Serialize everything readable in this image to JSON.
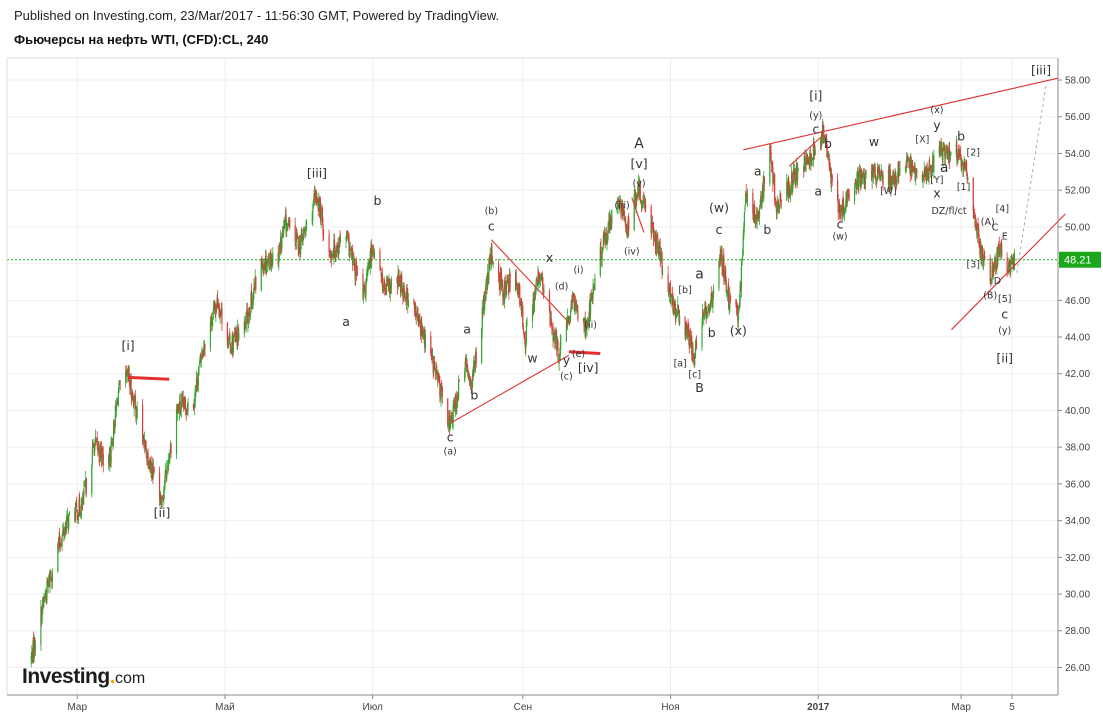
{
  "header": {
    "published_line": "Published on Investing.com, 23/Mar/2017 - 11:56:30 GMT, Powered by TradingView.",
    "title": "Фьючерсы на нефть WTI, (CFD):CL, 240"
  },
  "brand": {
    "name": "Investing",
    "suffix": "com"
  },
  "colors": {
    "up": "#33a532",
    "down": "#d83a3a",
    "trendline": "#e03030",
    "last_price_line": "#1aa71a",
    "grid": "#eeeeee",
    "projection": "#aaaaaa"
  },
  "chart_data": {
    "type": "candlestick",
    "title": "Фьючерсы на нефть WTI, (CFD):CL, 240",
    "ylim": [
      24.5,
      59.2
    ],
    "xlim": [
      "2016-02-01",
      "2017-04-10"
    ],
    "y_ticks": [
      "26.00",
      "28.00",
      "30.00",
      "32.00",
      "34.00",
      "36.00",
      "38.00",
      "40.00",
      "42.00",
      "44.00",
      "46.00",
      "48.00",
      "50.00",
      "52.00",
      "54.00",
      "56.00",
      "58.00"
    ],
    "x_ticks": [
      {
        "date": "2016-03-01",
        "label": "Мар",
        "bold": false
      },
      {
        "date": "2016-05-01",
        "label": "Май",
        "bold": false
      },
      {
        "date": "2016-07-01",
        "label": "Июл",
        "bold": false
      },
      {
        "date": "2016-09-01",
        "label": "Сен",
        "bold": false
      },
      {
        "date": "2016-11-01",
        "label": "Ноя",
        "bold": false
      },
      {
        "date": "2017-01-01",
        "label": "2017",
        "bold": true
      },
      {
        "date": "2017-03-01",
        "label": "Мар",
        "bold": false
      },
      {
        "date": "2017-03-22",
        "label": "5",
        "bold": false
      }
    ],
    "last_price": 48.21,
    "last_price_label": "48.21",
    "grid": true,
    "price_path": [
      [
        "2016-02-11",
        26.5
      ],
      [
        "2016-02-16",
        29.5
      ],
      [
        "2016-02-22",
        32.5
      ],
      [
        "2016-02-26",
        34.0
      ],
      [
        "2016-03-03",
        34.8
      ],
      [
        "2016-03-08",
        38.2
      ],
      [
        "2016-03-14",
        37.0
      ],
      [
        "2016-03-18",
        41.0
      ],
      [
        "2016-03-22",
        41.8
      ],
      [
        "2016-03-29",
        38.0
      ],
      [
        "2016-04-05",
        35.2
      ],
      [
        "2016-04-11",
        40.0
      ],
      [
        "2016-04-18",
        40.5
      ],
      [
        "2016-04-22",
        43.5
      ],
      [
        "2016-04-28",
        46.0
      ],
      [
        "2016-05-03",
        43.5
      ],
      [
        "2016-05-09",
        44.5
      ],
      [
        "2016-05-16",
        48.0
      ],
      [
        "2016-05-23",
        48.5
      ],
      [
        "2016-05-26",
        50.2
      ],
      [
        "2016-06-01",
        49.0
      ],
      [
        "2016-06-08",
        51.7
      ],
      [
        "2016-06-13",
        48.5
      ],
      [
        "2016-06-20",
        49.5
      ],
      [
        "2016-06-27",
        46.0
      ],
      [
        "2016-07-01",
        49.0
      ],
      [
        "2016-07-06",
        46.5
      ],
      [
        "2016-07-12",
        47.0
      ],
      [
        "2016-07-18",
        45.5
      ],
      [
        "2016-07-25",
        43.0
      ],
      [
        "2016-08-02",
        39.2
      ],
      [
        "2016-08-08",
        42.5
      ],
      [
        "2016-08-11",
        41.5
      ],
      [
        "2016-08-19",
        48.5
      ],
      [
        "2016-08-24",
        46.5
      ],
      [
        "2016-08-29",
        47.5
      ],
      [
        "2016-09-02",
        44.0
      ],
      [
        "2016-09-08",
        47.5
      ],
      [
        "2016-09-12",
        45.0
      ],
      [
        "2016-09-16",
        43.0
      ],
      [
        "2016-09-22",
        46.0
      ],
      [
        "2016-09-27",
        44.5
      ],
      [
        "2016-10-03",
        48.5
      ],
      [
        "2016-10-10",
        51.5
      ],
      [
        "2016-10-14",
        50.0
      ],
      [
        "2016-10-19",
        52.0
      ],
      [
        "2016-10-25",
        49.8
      ],
      [
        "2016-11-01",
        46.0
      ],
      [
        "2016-11-07",
        44.5
      ],
      [
        "2016-11-11",
        43.0
      ],
      [
        "2016-11-15",
        45.5
      ],
      [
        "2016-11-18",
        46.0
      ],
      [
        "2016-11-22",
        48.5
      ],
      [
        "2016-11-25",
        46.0
      ],
      [
        "2016-11-29",
        45.0
      ],
      [
        "2016-12-02",
        51.5
      ],
      [
        "2016-12-07",
        50.5
      ],
      [
        "2016-12-12",
        54.0
      ],
      [
        "2016-12-15",
        51.0
      ],
      [
        "2016-12-21",
        52.5
      ],
      [
        "2016-12-29",
        53.8
      ],
      [
        "2017-01-03",
        55.2
      ],
      [
        "2017-01-06",
        53.0
      ],
      [
        "2017-01-10",
        50.8
      ],
      [
        "2017-01-17",
        52.5
      ],
      [
        "2017-01-24",
        53.0
      ],
      [
        "2017-01-31",
        52.5
      ],
      [
        "2017-02-06",
        53.5
      ],
      [
        "2017-02-13",
        52.5
      ],
      [
        "2017-02-20",
        54.2
      ],
      [
        "2017-02-27",
        54.0
      ],
      [
        "2017-03-03",
        53.0
      ],
      [
        "2017-03-08",
        49.5
      ],
      [
        "2017-03-10",
        48.2
      ],
      [
        "2017-03-14",
        47.3
      ],
      [
        "2017-03-17",
        48.8
      ],
      [
        "2017-03-20",
        47.5
      ],
      [
        "2017-03-23",
        48.2
      ]
    ],
    "trendlines": [
      {
        "color": "red",
        "points": [
          [
            "2016-03-22",
            41.8
          ],
          [
            "2016-04-08",
            41.7
          ]
        ],
        "thick": true
      },
      {
        "color": "red",
        "points": [
          [
            "2016-09-20",
            43.2
          ],
          [
            "2016-10-03",
            43.1
          ]
        ],
        "thick": true
      },
      {
        "color": "red",
        "points": [
          [
            "2016-08-02",
            39.3
          ],
          [
            "2016-09-20",
            43.0
          ]
        ]
      },
      {
        "color": "red",
        "points": [
          [
            "2016-08-19",
            49.3
          ],
          [
            "2016-09-20",
            44.8
          ]
        ]
      },
      {
        "color": "red",
        "points": [
          [
            "2016-12-01",
            54.2
          ],
          [
            "2017-04-10",
            58.1
          ]
        ]
      },
      {
        "color": "red",
        "points": [
          [
            "2017-02-25",
            44.4
          ],
          [
            "2017-04-13",
            50.7
          ]
        ]
      },
      {
        "color": "red",
        "points": [
          [
            "2016-10-16",
            51.6
          ],
          [
            "2016-10-21",
            49.7
          ]
        ]
      },
      {
        "color": "red",
        "points": [
          [
            "2016-12-20",
            53.3
          ],
          [
            "2017-01-03",
            55.0
          ]
        ]
      }
    ],
    "projection_line": [
      [
        "2017-03-24",
        47.5
      ],
      [
        "2017-04-05",
        57.7
      ]
    ],
    "annotations": [
      {
        "t": "[i]",
        "x": "2016-03-22",
        "y": 43.3
      },
      {
        "t": "[ii]",
        "x": "2016-04-05",
        "y": 34.2
      },
      {
        "t": "[iii]",
        "x": "2016-06-08",
        "y": 52.7
      },
      {
        "t": "a",
        "x": "2016-06-20",
        "y": 44.6
      },
      {
        "t": "b",
        "x": "2016-07-03",
        "y": 51.2
      },
      {
        "t": "c",
        "x": "2016-08-02",
        "y": 38.3
      },
      {
        "t": "(a)",
        "x": "2016-08-02",
        "y": 37.6,
        "s": "small"
      },
      {
        "t": "b",
        "x": "2016-08-12",
        "y": 40.6
      },
      {
        "t": "a",
        "x": "2016-08-09",
        "y": 44.2
      },
      {
        "t": "(b)",
        "x": "2016-08-19",
        "y": 50.7,
        "s": "small"
      },
      {
        "t": "c",
        "x": "2016-08-19",
        "y": 49.8
      },
      {
        "t": "x",
        "x": "2016-09-12",
        "y": 48.1
      },
      {
        "t": "w",
        "x": "2016-09-05",
        "y": 42.6
      },
      {
        "t": "(d)",
        "x": "2016-09-17",
        "y": 46.6,
        "s": "small"
      },
      {
        "t": "(i)",
        "x": "2016-09-24",
        "y": 47.5,
        "s": "small"
      },
      {
        "t": "(ii)",
        "x": "2016-09-29",
        "y": 44.5,
        "s": "small"
      },
      {
        "t": "(e)",
        "x": "2016-09-24",
        "y": 42.9,
        "s": "small"
      },
      {
        "t": "y",
        "x": "2016-09-19",
        "y": 42.5
      },
      {
        "t": "(c)",
        "x": "2016-09-19",
        "y": 41.7,
        "s": "small"
      },
      {
        "t": "[iv]",
        "x": "2016-09-28",
        "y": 42.1
      },
      {
        "t": "(iii)",
        "x": "2016-10-12",
        "y": 51.0,
        "s": "small"
      },
      {
        "t": "(iv)",
        "x": "2016-10-16",
        "y": 48.5,
        "s": "small"
      },
      {
        "t": "A",
        "x": "2016-10-19",
        "y": 54.3,
        "s": "big"
      },
      {
        "t": "[v]",
        "x": "2016-10-19",
        "y": 53.2
      },
      {
        "t": "(v)",
        "x": "2016-10-19",
        "y": 52.2,
        "s": "small"
      },
      {
        "t": "a",
        "x": "2016-11-13",
        "y": 47.2,
        "s": "big"
      },
      {
        "t": "[b]",
        "x": "2016-11-07",
        "y": 46.4,
        "s": "small"
      },
      {
        "t": "b",
        "x": "2016-11-18",
        "y": 44.0
      },
      {
        "t": "[a]",
        "x": "2016-11-05",
        "y": 42.4,
        "s": "small"
      },
      {
        "t": "[c]",
        "x": "2016-11-11",
        "y": 41.8,
        "s": "small"
      },
      {
        "t": "B",
        "x": "2016-11-13",
        "y": 41.0
      },
      {
        "t": "(x)",
        "x": "2016-11-29",
        "y": 44.1
      },
      {
        "t": "(w)",
        "x": "2016-11-21",
        "y": 50.8
      },
      {
        "t": "c",
        "x": "2016-11-21",
        "y": 49.6
      },
      {
        "t": "a",
        "x": "2016-12-07",
        "y": 52.8
      },
      {
        "t": "b",
        "x": "2016-12-11",
        "y": 49.6
      },
      {
        "t": "[i]",
        "x": "2016-12-31",
        "y": 56.9
      },
      {
        "t": "(y)",
        "x": "2016-12-31",
        "y": 55.9,
        "s": "small"
      },
      {
        "t": "c",
        "x": "2016-12-31",
        "y": 55.1
      },
      {
        "t": "a",
        "x": "2017-01-01",
        "y": 51.7
      },
      {
        "t": "b",
        "x": "2017-01-05",
        "y": 54.3
      },
      {
        "t": "c",
        "x": "2017-01-10",
        "y": 49.9
      },
      {
        "t": "(w)",
        "x": "2017-01-10",
        "y": 49.3,
        "s": "small"
      },
      {
        "t": "w",
        "x": "2017-01-24",
        "y": 54.4
      },
      {
        "t": "[W]",
        "x": "2017-01-30",
        "y": 51.8,
        "s": "small"
      },
      {
        "t": "[X]",
        "x": "2017-02-13",
        "y": 54.6,
        "s": "small"
      },
      {
        "t": "(x)",
        "x": "2017-02-19",
        "y": 56.2,
        "s": "small"
      },
      {
        "t": "y",
        "x": "2017-02-19",
        "y": 55.3
      },
      {
        "t": "a",
        "x": "2017-02-22",
        "y": 53.0,
        "s": "big"
      },
      {
        "t": "[Y]",
        "x": "2017-02-19",
        "y": 52.4,
        "s": "small"
      },
      {
        "t": "x",
        "x": "2017-02-19",
        "y": 51.6
      },
      {
        "t": "DZ/fl/ct",
        "x": "2017-02-24",
        "y": 50.7,
        "s": "small"
      },
      {
        "t": "b",
        "x": "2017-03-01",
        "y": 54.7
      },
      {
        "t": "[2]",
        "x": "2017-03-06",
        "y": 53.9,
        "s": "small"
      },
      {
        "t": "[1]",
        "x": "2017-03-02",
        "y": 52.0,
        "s": "small"
      },
      {
        "t": "(A)",
        "x": "2017-03-12",
        "y": 50.1,
        "s": "small"
      },
      {
        "t": "C",
        "x": "2017-03-15",
        "y": 49.8,
        "s": "small"
      },
      {
        "t": "[4]",
        "x": "2017-03-18",
        "y": 50.8,
        "s": "small"
      },
      {
        "t": "E",
        "x": "2017-03-19",
        "y": 49.3,
        "s": "small"
      },
      {
        "t": "[3]",
        "x": "2017-03-06",
        "y": 47.8,
        "s": "small"
      },
      {
        "t": "D",
        "x": "2017-03-16",
        "y": 46.9,
        "s": "small"
      },
      {
        "t": "(B)",
        "x": "2017-03-13",
        "y": 46.1,
        "s": "small"
      },
      {
        "t": "[5]",
        "x": "2017-03-19",
        "y": 45.9,
        "s": "small"
      },
      {
        "t": "c",
        "x": "2017-03-19",
        "y": 45.0
      },
      {
        "t": "(y)",
        "x": "2017-03-19",
        "y": 44.2,
        "s": "small"
      },
      {
        "t": "[ii]",
        "x": "2017-03-19",
        "y": 42.6
      },
      {
        "t": "[iii]",
        "x": "2017-04-03",
        "y": 58.3
      }
    ]
  }
}
